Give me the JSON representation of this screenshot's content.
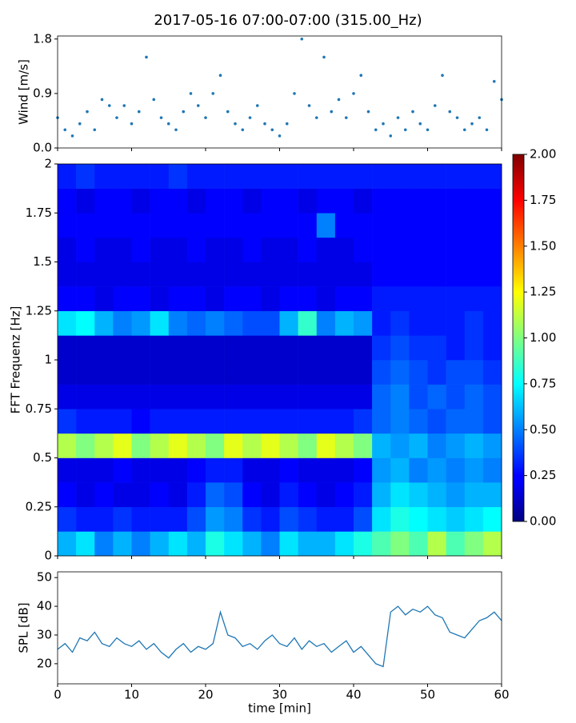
{
  "chart_data": [
    {
      "type": "scatter",
      "title": "2017-05-16 07:00-07:00 (315.00_Hz)",
      "ylabel": "Wind [m/s]",
      "color": "#1f77b4",
      "x": [
        0,
        1,
        2,
        3,
        4,
        5,
        6,
        7,
        8,
        9,
        10,
        11,
        12,
        13,
        14,
        15,
        16,
        17,
        18,
        19,
        20,
        21,
        22,
        23,
        24,
        25,
        26,
        27,
        28,
        29,
        30,
        31,
        32,
        33,
        34,
        35,
        36,
        37,
        38,
        39,
        40,
        41,
        42,
        43,
        44,
        45,
        46,
        47,
        48,
        49,
        50,
        51,
        52,
        53,
        54,
        55,
        56,
        57,
        58,
        59,
        60
      ],
      "values": [
        0.5,
        0.3,
        0.2,
        0.4,
        0.6,
        0.3,
        0.8,
        0.7,
        0.5,
        0.7,
        0.4,
        0.6,
        1.5,
        0.8,
        0.5,
        0.4,
        0.3,
        0.6,
        0.9,
        0.7,
        0.5,
        0.9,
        1.2,
        0.6,
        0.4,
        0.3,
        0.5,
        0.7,
        0.4,
        0.3,
        0.2,
        0.4,
        0.9,
        1.8,
        0.7,
        0.5,
        1.5,
        0.6,
        0.8,
        0.5,
        0.9,
        1.2,
        0.6,
        0.3,
        0.4,
        0.2,
        0.5,
        0.3,
        0.6,
        0.4,
        0.3,
        0.7,
        1.2,
        0.6,
        0.5,
        0.3,
        0.4,
        0.5,
        0.3,
        1.1,
        0.8
      ],
      "xlim": [
        0,
        60
      ],
      "ylim": [
        0,
        1.85
      ],
      "yticks": [
        {
          "value": 0,
          "label": "0.0"
        },
        {
          "value": 0.9,
          "label": "0.9"
        },
        {
          "value": 1.8,
          "label": "1.8"
        }
      ]
    },
    {
      "type": "heatmap",
      "ylabel": "FFT Frequenz [Hz]",
      "colormap": "jet",
      "xlim": [
        0,
        60
      ],
      "ylim": [
        0,
        2
      ],
      "yticks": [
        0,
        0.25,
        0.5,
        0.75,
        1,
        1.25,
        1.5,
        1.75,
        2
      ],
      "clim": [
        0,
        2
      ],
      "cticks": [
        {
          "value": 0,
          "label": "0.00"
        },
        {
          "value": 0.25,
          "label": "0.25"
        },
        {
          "value": 0.5,
          "label": "0.50"
        },
        {
          "value": 0.75,
          "label": "0.75"
        },
        {
          "value": 1,
          "label": "1.00"
        },
        {
          "value": 1.25,
          "label": "1.25"
        },
        {
          "value": 1.5,
          "label": "1.50"
        },
        {
          "value": 1.75,
          "label": "1.75"
        },
        {
          "value": 2,
          "label": "2.00"
        }
      ],
      "values": [
        [
          0.6,
          0.7,
          0.5,
          0.6,
          0.5,
          0.6,
          0.7,
          0.6,
          0.8,
          0.7,
          0.6,
          0.5,
          0.7,
          0.6,
          0.6,
          0.7,
          0.8,
          0.9,
          1.0,
          0.9,
          1.1,
          0.9,
          1.0,
          1.1
        ],
        [
          0.35,
          0.3,
          0.3,
          0.35,
          0.3,
          0.3,
          0.3,
          0.4,
          0.55,
          0.5,
          0.35,
          0.3,
          0.4,
          0.35,
          0.3,
          0.3,
          0.4,
          0.7,
          0.8,
          0.75,
          0.7,
          0.65,
          0.7,
          0.75
        ],
        [
          0.25,
          0.2,
          0.25,
          0.2,
          0.2,
          0.25,
          0.2,
          0.3,
          0.45,
          0.4,
          0.25,
          0.2,
          0.3,
          0.25,
          0.2,
          0.25,
          0.3,
          0.6,
          0.7,
          0.65,
          0.6,
          0.55,
          0.6,
          0.6
        ],
        [
          0.2,
          0.2,
          0.2,
          0.25,
          0.2,
          0.2,
          0.2,
          0.25,
          0.3,
          0.3,
          0.2,
          0.2,
          0.25,
          0.2,
          0.2,
          0.2,
          0.25,
          0.55,
          0.6,
          0.5,
          0.55,
          0.5,
          0.55,
          0.5
        ],
        [
          1.1,
          1.0,
          1.1,
          1.2,
          1.0,
          1.1,
          1.2,
          1.1,
          1.0,
          1.2,
          1.1,
          1.2,
          1.1,
          1.0,
          1.2,
          1.1,
          1.0,
          0.6,
          0.55,
          0.6,
          0.5,
          0.55,
          0.6,
          0.55
        ],
        [
          0.35,
          0.3,
          0.3,
          0.3,
          0.25,
          0.3,
          0.3,
          0.3,
          0.3,
          0.3,
          0.3,
          0.3,
          0.3,
          0.3,
          0.3,
          0.3,
          0.35,
          0.45,
          0.5,
          0.45,
          0.4,
          0.45,
          0.45,
          0.4
        ],
        [
          0.2,
          0.2,
          0.2,
          0.2,
          0.2,
          0.2,
          0.2,
          0.2,
          0.2,
          0.2,
          0.2,
          0.2,
          0.2,
          0.2,
          0.2,
          0.2,
          0.2,
          0.45,
          0.5,
          0.4,
          0.45,
          0.4,
          0.45,
          0.4
        ],
        [
          0.15,
          0.15,
          0.15,
          0.15,
          0.15,
          0.15,
          0.15,
          0.15,
          0.15,
          0.15,
          0.15,
          0.15,
          0.15,
          0.15,
          0.15,
          0.15,
          0.15,
          0.4,
          0.45,
          0.4,
          0.35,
          0.4,
          0.4,
          0.35
        ],
        [
          0.15,
          0.15,
          0.15,
          0.15,
          0.15,
          0.15,
          0.15,
          0.15,
          0.15,
          0.15,
          0.15,
          0.15,
          0.15,
          0.15,
          0.15,
          0.15,
          0.15,
          0.35,
          0.4,
          0.35,
          0.35,
          0.3,
          0.35,
          0.3
        ],
        [
          0.7,
          0.75,
          0.6,
          0.5,
          0.55,
          0.7,
          0.5,
          0.45,
          0.5,
          0.45,
          0.4,
          0.4,
          0.6,
          0.85,
          0.5,
          0.6,
          0.55,
          0.3,
          0.35,
          0.3,
          0.3,
          0.3,
          0.35,
          0.3
        ],
        [
          0.25,
          0.25,
          0.2,
          0.25,
          0.25,
          0.2,
          0.25,
          0.25,
          0.2,
          0.25,
          0.25,
          0.2,
          0.25,
          0.25,
          0.2,
          0.25,
          0.25,
          0.3,
          0.3,
          0.3,
          0.3,
          0.3,
          0.3,
          0.3
        ],
        [
          0.2,
          0.2,
          0.2,
          0.2,
          0.2,
          0.2,
          0.2,
          0.2,
          0.2,
          0.2,
          0.2,
          0.2,
          0.2,
          0.2,
          0.2,
          0.2,
          0.2,
          0.25,
          0.25,
          0.25,
          0.25,
          0.25,
          0.25,
          0.25
        ],
        [
          0.2,
          0.25,
          0.2,
          0.2,
          0.25,
          0.2,
          0.2,
          0.25,
          0.2,
          0.2,
          0.25,
          0.2,
          0.2,
          0.25,
          0.2,
          0.2,
          0.25,
          0.25,
          0.25,
          0.25,
          0.25,
          0.25,
          0.25,
          0.25
        ],
        [
          0.25,
          0.25,
          0.25,
          0.25,
          0.25,
          0.25,
          0.25,
          0.25,
          0.25,
          0.25,
          0.25,
          0.25,
          0.25,
          0.25,
          0.5,
          0.25,
          0.25,
          0.25,
          0.25,
          0.25,
          0.25,
          0.25,
          0.25,
          0.25
        ],
        [
          0.25,
          0.2,
          0.25,
          0.25,
          0.2,
          0.25,
          0.25,
          0.2,
          0.25,
          0.25,
          0.2,
          0.25,
          0.25,
          0.2,
          0.25,
          0.25,
          0.2,
          0.25,
          0.25,
          0.25,
          0.25,
          0.25,
          0.25,
          0.25
        ],
        [
          0.3,
          0.35,
          0.3,
          0.3,
          0.3,
          0.3,
          0.35,
          0.3,
          0.3,
          0.3,
          0.3,
          0.3,
          0.3,
          0.3,
          0.3,
          0.3,
          0.3,
          0.3,
          0.3,
          0.3,
          0.3,
          0.3,
          0.3,
          0.3
        ]
      ]
    },
    {
      "type": "line",
      "ylabel": "SPL [dB]",
      "xlabel": "time [min]",
      "color": "#1f77b4",
      "x": [
        0,
        1,
        2,
        3,
        4,
        5,
        6,
        7,
        8,
        9,
        10,
        11,
        12,
        13,
        14,
        15,
        16,
        17,
        18,
        19,
        20,
        21,
        22,
        23,
        24,
        25,
        26,
        27,
        28,
        29,
        30,
        31,
        32,
        33,
        34,
        35,
        36,
        37,
        38,
        39,
        40,
        41,
        42,
        43,
        44,
        45,
        46,
        47,
        48,
        49,
        50,
        51,
        52,
        53,
        54,
        55,
        56,
        57,
        58,
        59,
        60
      ],
      "values": [
        25,
        27,
        24,
        29,
        28,
        31,
        27,
        26,
        29,
        27,
        26,
        28,
        25,
        27,
        24,
        22,
        25,
        27,
        24,
        26,
        25,
        27,
        38,
        30,
        29,
        26,
        27,
        25,
        28,
        30,
        27,
        26,
        29,
        25,
        28,
        26,
        27,
        24,
        26,
        28,
        24,
        26,
        23,
        20,
        19,
        38,
        40,
        37,
        39,
        38,
        40,
        37,
        36,
        31,
        30,
        29,
        32,
        35,
        36,
        38,
        35
      ],
      "xlim": [
        0,
        60
      ],
      "ylim": [
        13,
        52
      ],
      "xticks": [
        0,
        10,
        20,
        30,
        40,
        50,
        60
      ],
      "yticks": [
        20,
        30,
        40,
        50
      ]
    }
  ]
}
